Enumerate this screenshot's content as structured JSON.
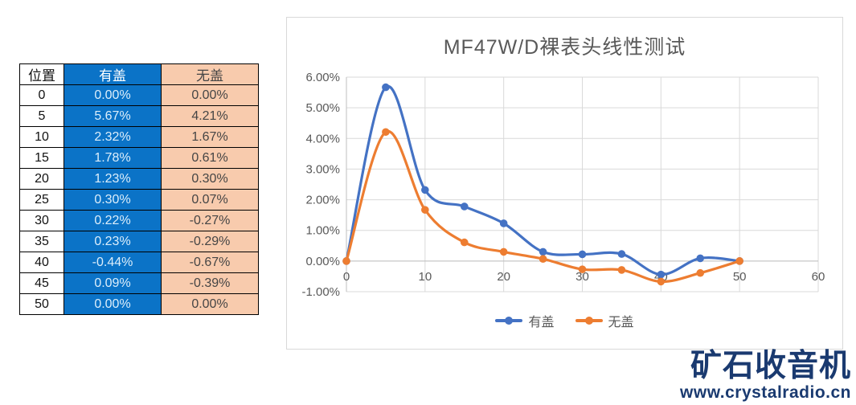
{
  "table": {
    "columns": [
      "位置",
      "有盖",
      "无盖"
    ],
    "rows": [
      [
        "0",
        "0.00%",
        "0.00%"
      ],
      [
        "5",
        "5.67%",
        "4.21%"
      ],
      [
        "10",
        "2.32%",
        "1.67%"
      ],
      [
        "15",
        "1.78%",
        "0.61%"
      ],
      [
        "20",
        "1.23%",
        "0.30%"
      ],
      [
        "25",
        "0.30%",
        "0.07%"
      ],
      [
        "30",
        "0.22%",
        "-0.27%"
      ],
      [
        "35",
        "0.23%",
        "-0.29%"
      ],
      [
        "40",
        "-0.44%",
        "-0.67%"
      ],
      [
        "45",
        "0.09%",
        "-0.39%"
      ],
      [
        "50",
        "0.00%",
        "0.00%"
      ]
    ],
    "colors": {
      "covered_fill": "#0b73c7",
      "covered_text": "#dceefb",
      "covered_header_text": "#ffffff",
      "uncovered_fill": "#f8cbad",
      "uncovered_text": "#454545"
    }
  },
  "chart_data": {
    "type": "line",
    "title": "MF47W/D裸表头线性测试",
    "x": [
      0,
      5,
      10,
      15,
      20,
      25,
      30,
      35,
      40,
      45,
      50
    ],
    "series": [
      {
        "name": "有盖",
        "color": "#4472C4",
        "values": [
          0,
          5.67,
          2.32,
          1.78,
          1.23,
          0.3,
          0.22,
          0.23,
          -0.44,
          0.09,
          0
        ]
      },
      {
        "name": "无盖",
        "color": "#ED7D31",
        "values": [
          0,
          4.21,
          1.67,
          0.61,
          0.3,
          0.07,
          -0.27,
          -0.29,
          -0.67,
          -0.39,
          0
        ]
      }
    ],
    "xlim": [
      0,
      60
    ],
    "ylim": [
      -1,
      6
    ],
    "x_ticks": [
      0,
      10,
      20,
      30,
      40,
      50,
      60
    ],
    "y_tick_values": [
      6,
      5,
      4,
      3,
      2,
      1,
      0,
      -1
    ],
    "y_tick_labels": [
      "6.00%",
      "5.00%",
      "4.00%",
      "3.00%",
      "2.00%",
      "1.00%",
      "0.00%",
      "-1.00%"
    ],
    "grid": true,
    "smooth_lines": true,
    "legend_position": "bottom",
    "colors": {
      "title": "#595959",
      "axis_labels": "#595959",
      "legend_text": "#595959",
      "gridline": "#d9d9d9",
      "axis_line": "#bfbfbf"
    }
  },
  "watermark": {
    "logo": "矿石收音机",
    "url": "www.crystalradio.cn",
    "color": "#1a3a70"
  }
}
